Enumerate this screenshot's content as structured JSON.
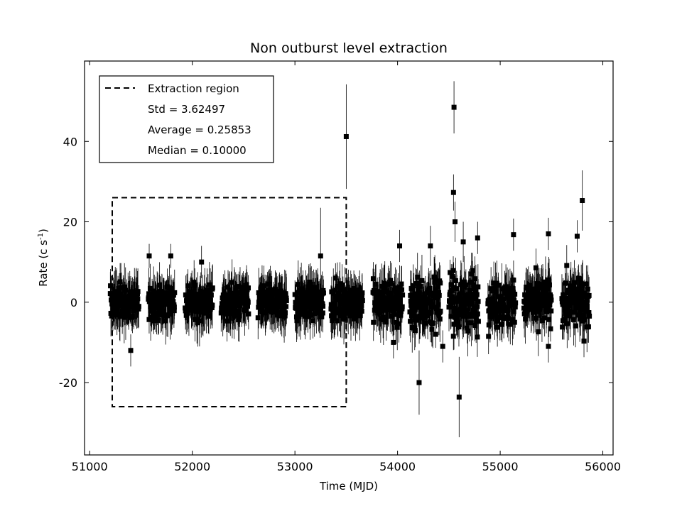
{
  "chart_data": {
    "type": "scatter",
    "title": "Non outburst level extraction",
    "xlabel": "Time (MJD)",
    "ylabel_main": "Rate (c s",
    "ylabel_sup": "-1",
    "ylabel_close": ")",
    "xlim": [
      50950,
      56100
    ],
    "ylim": [
      -38,
      60
    ],
    "xticks": [
      51000,
      52000,
      53000,
      54000,
      55000,
      56000
    ],
    "yticks": [
      -20,
      0,
      20,
      40
    ],
    "xtick_labels": [
      "51000",
      "52000",
      "53000",
      "54000",
      "55000",
      "56000"
    ],
    "ytick_labels": [
      "-20",
      "0",
      "20",
      "40"
    ],
    "grid": false,
    "legend": {
      "placement": "top-left",
      "entries": [
        "Extraction region",
        "Std = 3.62497",
        "Average = 0.25853",
        "Median = 0.10000"
      ]
    },
    "extraction_region": {
      "x": [
        51220,
        53500
      ],
      "y": [
        -26,
        26
      ],
      "style": "dashed"
    },
    "observing_seasons": [
      [
        51200,
        51480
      ],
      [
        51570,
        51830
      ],
      [
        51930,
        52200
      ],
      [
        52280,
        52550
      ],
      [
        52640,
        52920
      ],
      [
        53000,
        53280
      ],
      [
        53350,
        53660
      ],
      [
        53760,
        54050
      ],
      [
        54120,
        54420
      ],
      [
        54500,
        54790
      ],
      [
        54880,
        55150
      ],
      [
        55230,
        55500
      ],
      [
        55600,
        55870
      ]
    ],
    "season_noise_amplitude": [
      4,
      4,
      4,
      4,
      4,
      4,
      4,
      5,
      6.5,
      7,
      5.5,
      5.5,
      6
    ],
    "outliers": [
      {
        "x": 53500,
        "y": 41.2,
        "err": 13
      },
      {
        "x": 54550,
        "y": 48.5,
        "err": 6.5
      },
      {
        "x": 54545,
        "y": 27.3,
        "err": 4.5
      },
      {
        "x": 54600,
        "y": -23.6,
        "err": 10
      },
      {
        "x": 55800,
        "y": 25.3,
        "err": 7.5
      },
      {
        "x": 54210,
        "y": -20,
        "err": 8
      },
      {
        "x": 51400,
        "y": -12,
        "err": 4
      },
      {
        "x": 51580,
        "y": 11.5,
        "err": 3
      },
      {
        "x": 51790,
        "y": 11.5,
        "err": 3
      },
      {
        "x": 52090,
        "y": 10,
        "err": 4
      },
      {
        "x": 53250,
        "y": 11.5,
        "err": 12
      },
      {
        "x": 54320,
        "y": 14,
        "err": 5
      },
      {
        "x": 54560,
        "y": 20,
        "err": 5
      },
      {
        "x": 54640,
        "y": 15,
        "err": 5
      },
      {
        "x": 54780,
        "y": 16,
        "err": 4
      },
      {
        "x": 55130,
        "y": 16.8,
        "err": 4
      },
      {
        "x": 55470,
        "y": 17,
        "err": 4
      },
      {
        "x": 55750,
        "y": 16.4,
        "err": 4
      },
      {
        "x": 54020,
        "y": 14,
        "err": 4
      },
      {
        "x": 53960,
        "y": -10,
        "err": 4
      },
      {
        "x": 54440,
        "y": -11,
        "err": 4
      },
      {
        "x": 55470,
        "y": -11,
        "err": 4
      }
    ]
  }
}
